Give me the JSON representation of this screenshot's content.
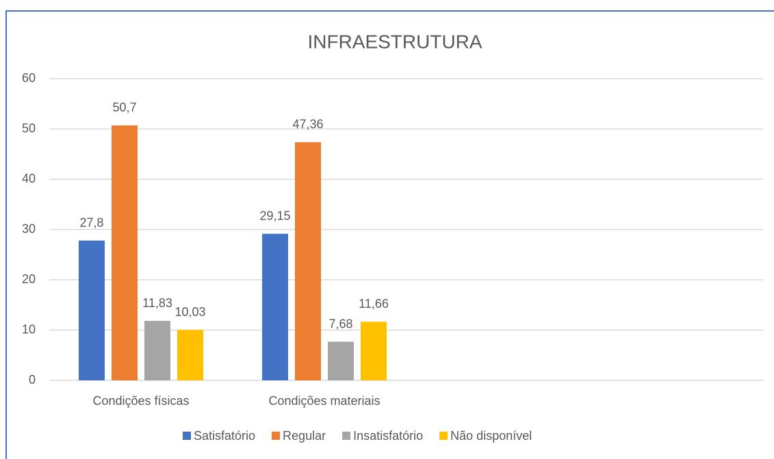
{
  "chart_data": {
    "type": "bar",
    "title": "INFRAESTRUTURA",
    "categories": [
      "Condições físicas",
      "Condições materiais",
      null,
      null
    ],
    "series": [
      {
        "name": "Satisfatório",
        "color": "#4472c4",
        "values": [
          27.8,
          29.15,
          null,
          null
        ],
        "value_labels": [
          "27,8",
          "29,15",
          null,
          null
        ]
      },
      {
        "name": "Regular",
        "color": "#ed7d31",
        "values": [
          50.7,
          47.36,
          null,
          null
        ],
        "value_labels": [
          "50,7",
          "47,36",
          null,
          null
        ]
      },
      {
        "name": "Insatisfatório",
        "color": "#a5a5a5",
        "values": [
          11.83,
          7.68,
          null,
          null
        ],
        "value_labels": [
          "11,83",
          "7,68",
          null,
          null
        ]
      },
      {
        "name": "Não disponível",
        "color": "#ffc000",
        "values": [
          10.03,
          11.66,
          null,
          null
        ],
        "value_labels": [
          "10,03",
          "11,66",
          null,
          null
        ]
      }
    ],
    "ylim": [
      0,
      60
    ],
    "yticks": [
      0,
      10,
      20,
      30,
      40,
      50,
      60
    ],
    "grid": true,
    "legend": "bottom"
  }
}
